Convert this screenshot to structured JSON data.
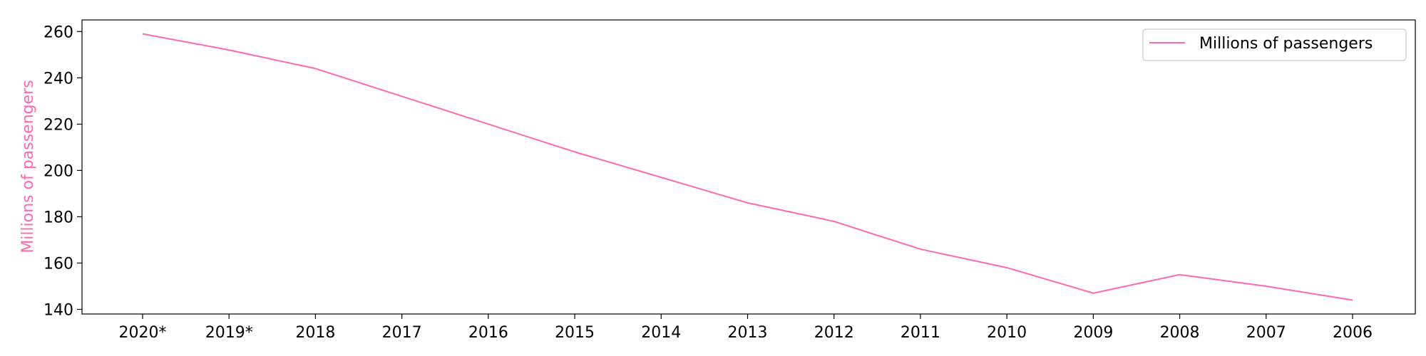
{
  "chart_data": {
    "type": "line",
    "categories": [
      "2020*",
      "2019*",
      "2018",
      "2017",
      "2016",
      "2015",
      "2014",
      "2013",
      "2012",
      "2011",
      "2010",
      "2009",
      "2008",
      "2007",
      "2006"
    ],
    "series": [
      {
        "name": "Millions of passengers",
        "values": [
          259,
          252,
          244,
          232,
          220,
          208,
          197,
          186,
          178,
          166,
          158,
          147,
          155,
          150,
          144
        ],
        "color": "#ff69b4"
      }
    ],
    "ylabel": "Millions of passengers",
    "ylabel_color": "#ff69b4",
    "ylim": [
      138,
      265
    ],
    "yticks": [
      140,
      160,
      180,
      200,
      220,
      240,
      260
    ],
    "grid": false,
    "legend_position": "top-right"
  }
}
